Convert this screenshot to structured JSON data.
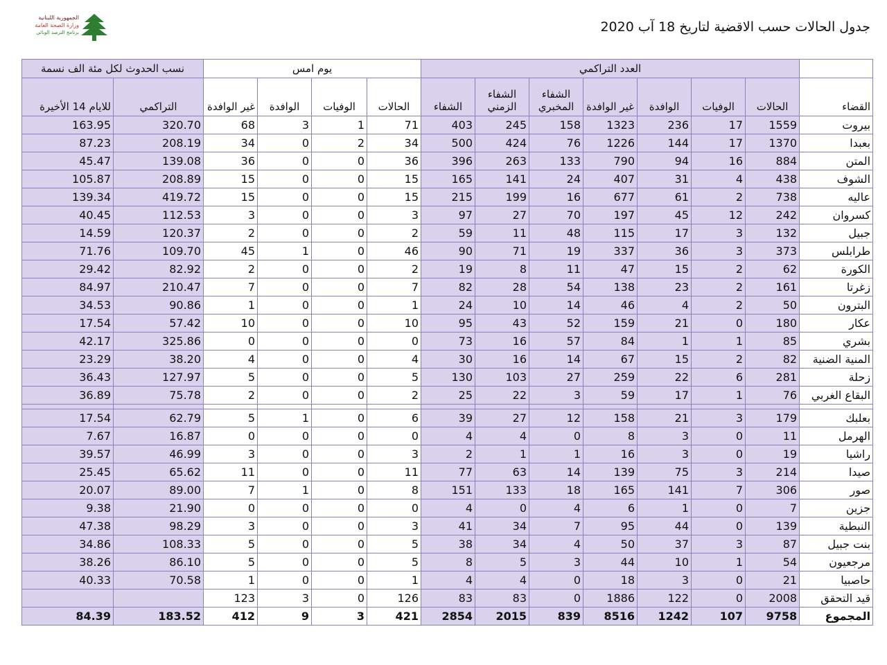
{
  "title": "جدول الحالات حسب الاقضية لتاريخ 18 آب 2020",
  "logo": {
    "line1": "الجمهورية اللبنانية",
    "line2": "وزارة الصحة العامة",
    "line3": "برنامج الترصد الوبائي",
    "icon": "cedar-tree-icon",
    "colors": {
      "cedar": "#2e7d32",
      "text": "#c0392b"
    }
  },
  "groups": {
    "cumulative": "العدد التراكمي",
    "yesterday": "يوم امس",
    "incidence": "نسب الحدوث لكل مئة الف نسمة"
  },
  "columns": {
    "district": "القضاء",
    "cases": "الحالات",
    "deaths": "الوفيات",
    "imported": "الوافدة",
    "non_imported": "غير الوافدة",
    "lab_recovered_1": "الشفاء",
    "lab_recovered_2": "المخبري",
    "time_recovered_1": "الشفاء",
    "time_recovered_2": "الزمني",
    "recovered": "الشفاء",
    "y_cases": "الحالات",
    "y_deaths": "الوفيات",
    "y_imported": "الوافدة",
    "y_non_imported": "غير الوافدة",
    "cumulative_rate": "التراكمي",
    "last14_rate": "للايام 14 الأخيرة"
  },
  "rows": [
    {
      "name": "بيروت",
      "v": [
        "1559",
        "17",
        "236",
        "1323",
        "158",
        "245",
        "403",
        "71",
        "1",
        "3",
        "68",
        "320.70",
        "163.95"
      ]
    },
    {
      "name": "بعبدا",
      "v": [
        "1370",
        "17",
        "144",
        "1226",
        "76",
        "424",
        "500",
        "34",
        "2",
        "0",
        "34",
        "208.19",
        "87.23"
      ]
    },
    {
      "name": "المتن",
      "v": [
        "884",
        "16",
        "94",
        "790",
        "133",
        "263",
        "396",
        "36",
        "0",
        "0",
        "36",
        "139.08",
        "45.47"
      ]
    },
    {
      "name": "الشوف",
      "v": [
        "438",
        "4",
        "31",
        "407",
        "24",
        "141",
        "165",
        "15",
        "0",
        "0",
        "15",
        "208.89",
        "105.87"
      ]
    },
    {
      "name": "عاليه",
      "v": [
        "738",
        "2",
        "61",
        "677",
        "16",
        "199",
        "215",
        "15",
        "0",
        "0",
        "15",
        "419.72",
        "139.34"
      ]
    },
    {
      "name": "كسروان",
      "v": [
        "242",
        "12",
        "45",
        "197",
        "70",
        "27",
        "97",
        "3",
        "0",
        "0",
        "3",
        "112.53",
        "40.45"
      ]
    },
    {
      "name": "جبيل",
      "v": [
        "132",
        "3",
        "17",
        "115",
        "48",
        "11",
        "59",
        "2",
        "0",
        "0",
        "2",
        "120.37",
        "14.59"
      ]
    },
    {
      "name": "طرابلس",
      "v": [
        "373",
        "3",
        "36",
        "337",
        "19",
        "71",
        "90",
        "46",
        "0",
        "1",
        "45",
        "109.70",
        "71.76"
      ]
    },
    {
      "name": "الكورة",
      "v": [
        "62",
        "2",
        "15",
        "47",
        "11",
        "8",
        "19",
        "2",
        "0",
        "0",
        "2",
        "82.92",
        "29.42"
      ]
    },
    {
      "name": "زغرتا",
      "v": [
        "161",
        "2",
        "23",
        "138",
        "54",
        "28",
        "82",
        "7",
        "0",
        "0",
        "7",
        "210.47",
        "84.97"
      ]
    },
    {
      "name": "البترون",
      "v": [
        "50",
        "2",
        "4",
        "46",
        "14",
        "10",
        "24",
        "1",
        "0",
        "0",
        "1",
        "90.86",
        "34.53"
      ]
    },
    {
      "name": "عكار",
      "v": [
        "180",
        "0",
        "21",
        "159",
        "52",
        "43",
        "95",
        "10",
        "0",
        "0",
        "10",
        "57.42",
        "17.54"
      ]
    },
    {
      "name": "بشري",
      "v": [
        "85",
        "1",
        "1",
        "84",
        "57",
        "16",
        "73",
        "0",
        "0",
        "0",
        "0",
        "325.86",
        "42.17"
      ]
    },
    {
      "name": "المنية الضنية",
      "v": [
        "82",
        "2",
        "15",
        "67",
        "14",
        "16",
        "30",
        "4",
        "0",
        "0",
        "4",
        "38.20",
        "23.29"
      ]
    },
    {
      "name": "زحلة",
      "v": [
        "281",
        "6",
        "22",
        "259",
        "27",
        "103",
        "130",
        "5",
        "0",
        "0",
        "5",
        "127.97",
        "36.43"
      ]
    },
    {
      "name": "البقاع الغربي",
      "v": [
        "76",
        "1",
        "17",
        "59",
        "3",
        "22",
        "25",
        "2",
        "0",
        "0",
        "2",
        "75.78",
        "36.89"
      ]
    },
    {
      "name": "بعلبك",
      "v": [
        "179",
        "3",
        "21",
        "158",
        "12",
        "27",
        "39",
        "6",
        "0",
        "1",
        "5",
        "62.79",
        "17.54"
      ]
    },
    {
      "name": "الهرمل",
      "v": [
        "11",
        "0",
        "3",
        "8",
        "0",
        "4",
        "4",
        "0",
        "0",
        "0",
        "0",
        "16.87",
        "7.67"
      ]
    },
    {
      "name": "راشيا",
      "v": [
        "19",
        "0",
        "3",
        "16",
        "1",
        "1",
        "2",
        "3",
        "0",
        "0",
        "3",
        "46.99",
        "39.57"
      ]
    },
    {
      "name": "صيدا",
      "v": [
        "214",
        "3",
        "75",
        "139",
        "14",
        "63",
        "77",
        "11",
        "0",
        "0",
        "11",
        "65.62",
        "25.45"
      ]
    },
    {
      "name": "صور",
      "v": [
        "306",
        "7",
        "141",
        "165",
        "18",
        "133",
        "151",
        "8",
        "0",
        "1",
        "7",
        "89.00",
        "20.07"
      ]
    },
    {
      "name": "جزين",
      "v": [
        "7",
        "0",
        "1",
        "6",
        "4",
        "0",
        "4",
        "0",
        "0",
        "0",
        "0",
        "21.90",
        "9.38"
      ]
    },
    {
      "name": "النبطية",
      "v": [
        "139",
        "0",
        "44",
        "95",
        "7",
        "34",
        "41",
        "3",
        "0",
        "0",
        "3",
        "98.29",
        "47.38"
      ]
    },
    {
      "name": "بنت جبيل",
      "v": [
        "87",
        "3",
        "37",
        "50",
        "4",
        "34",
        "38",
        "5",
        "0",
        "0",
        "5",
        "108.33",
        "34.86"
      ]
    },
    {
      "name": "مرجعيون",
      "v": [
        "54",
        "1",
        "10",
        "44",
        "3",
        "5",
        "8",
        "5",
        "0",
        "0",
        "5",
        "86.10",
        "38.26"
      ]
    },
    {
      "name": "حاصبيا",
      "v": [
        "21",
        "0",
        "3",
        "18",
        "0",
        "4",
        "4",
        "1",
        "0",
        "0",
        "1",
        "70.58",
        "40.33"
      ]
    },
    {
      "name": "قيد التحقق",
      "v": [
        "2008",
        "0",
        "122",
        "1886",
        "0",
        "83",
        "83",
        "126",
        "0",
        "3",
        "123",
        "",
        ""
      ]
    }
  ],
  "total": {
    "name": "المجموع",
    "v": [
      "9758",
      "107",
      "1242",
      "8516",
      "839",
      "2015",
      "2854",
      "421",
      "3",
      "9",
      "412",
      "183.52",
      "84.39"
    ]
  }
}
